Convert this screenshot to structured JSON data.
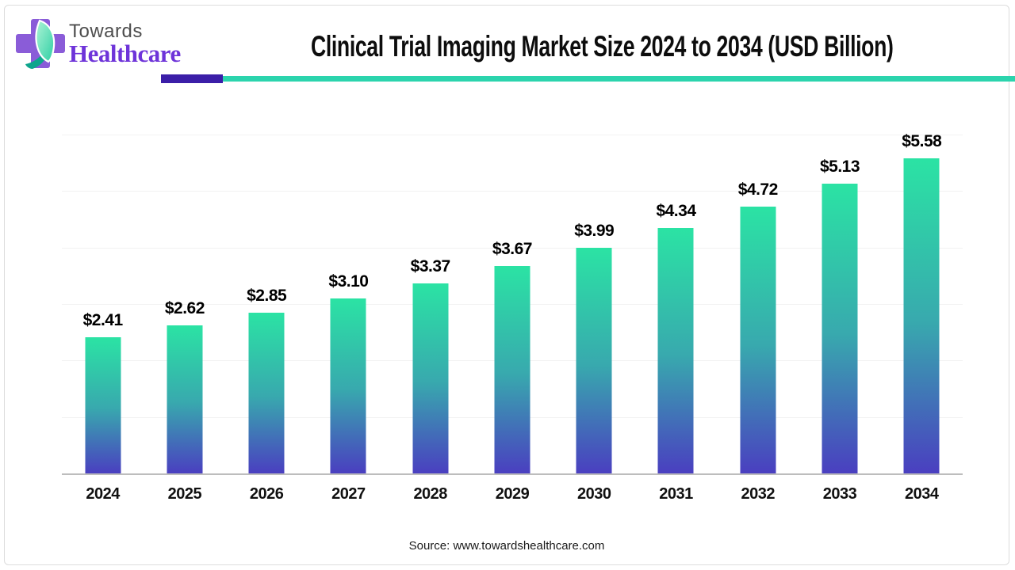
{
  "meta": {
    "title": "Clinical Trial Imaging Market Size 2024 to 2034 (USD Billion)"
  },
  "logo": {
    "brand_top": "Towards",
    "brand_bottom": "Healthcare",
    "mark": "cross-with-leaf-icon"
  },
  "source": {
    "label": "Source: www.towardshealthcare.com"
  },
  "colors": {
    "bar_top": "#2be3a4",
    "bar_mid": "#38a9ae",
    "bar_bottom": "#4a3fc0",
    "divider_purple": "#3b1ea8",
    "divider_teal": "#2bd4ad",
    "brand_purple": "#6e34d9",
    "brand_gray": "#4d4d4d",
    "cross_purple": "#8a5cd8",
    "leaf_light": "#a9f2d2",
    "leaf_teal": "#2fcfa4",
    "leaf_dark": "#0ea58d",
    "gridline": "#f2f2f2",
    "axis_line": "#bdbdbd",
    "label_color": "#000000"
  },
  "chart_data": {
    "type": "bar",
    "title": "Clinical Trial Imaging Market Size 2024 to 2034 (USD Billion)",
    "categories": [
      "2024",
      "2025",
      "2026",
      "2027",
      "2028",
      "2029",
      "2030",
      "2031",
      "2032",
      "2033",
      "2034"
    ],
    "values": [
      2.41,
      2.62,
      2.85,
      3.1,
      3.37,
      3.67,
      3.99,
      4.34,
      4.72,
      5.13,
      5.58
    ],
    "labels": [
      "$2.41",
      "$2.62",
      "$2.85",
      "$3.10",
      "$3.37",
      "$3.67",
      "$3.99",
      "$4.34",
      "$4.72",
      "$5.13",
      "$5.58"
    ],
    "xlabel": "",
    "ylabel": "",
    "ylim": [
      0,
      6
    ],
    "gridline_step": 1,
    "grid": "horizontal, unlabeled",
    "legend": "none",
    "bar_style": "vertical gradient teal-to-purple"
  }
}
